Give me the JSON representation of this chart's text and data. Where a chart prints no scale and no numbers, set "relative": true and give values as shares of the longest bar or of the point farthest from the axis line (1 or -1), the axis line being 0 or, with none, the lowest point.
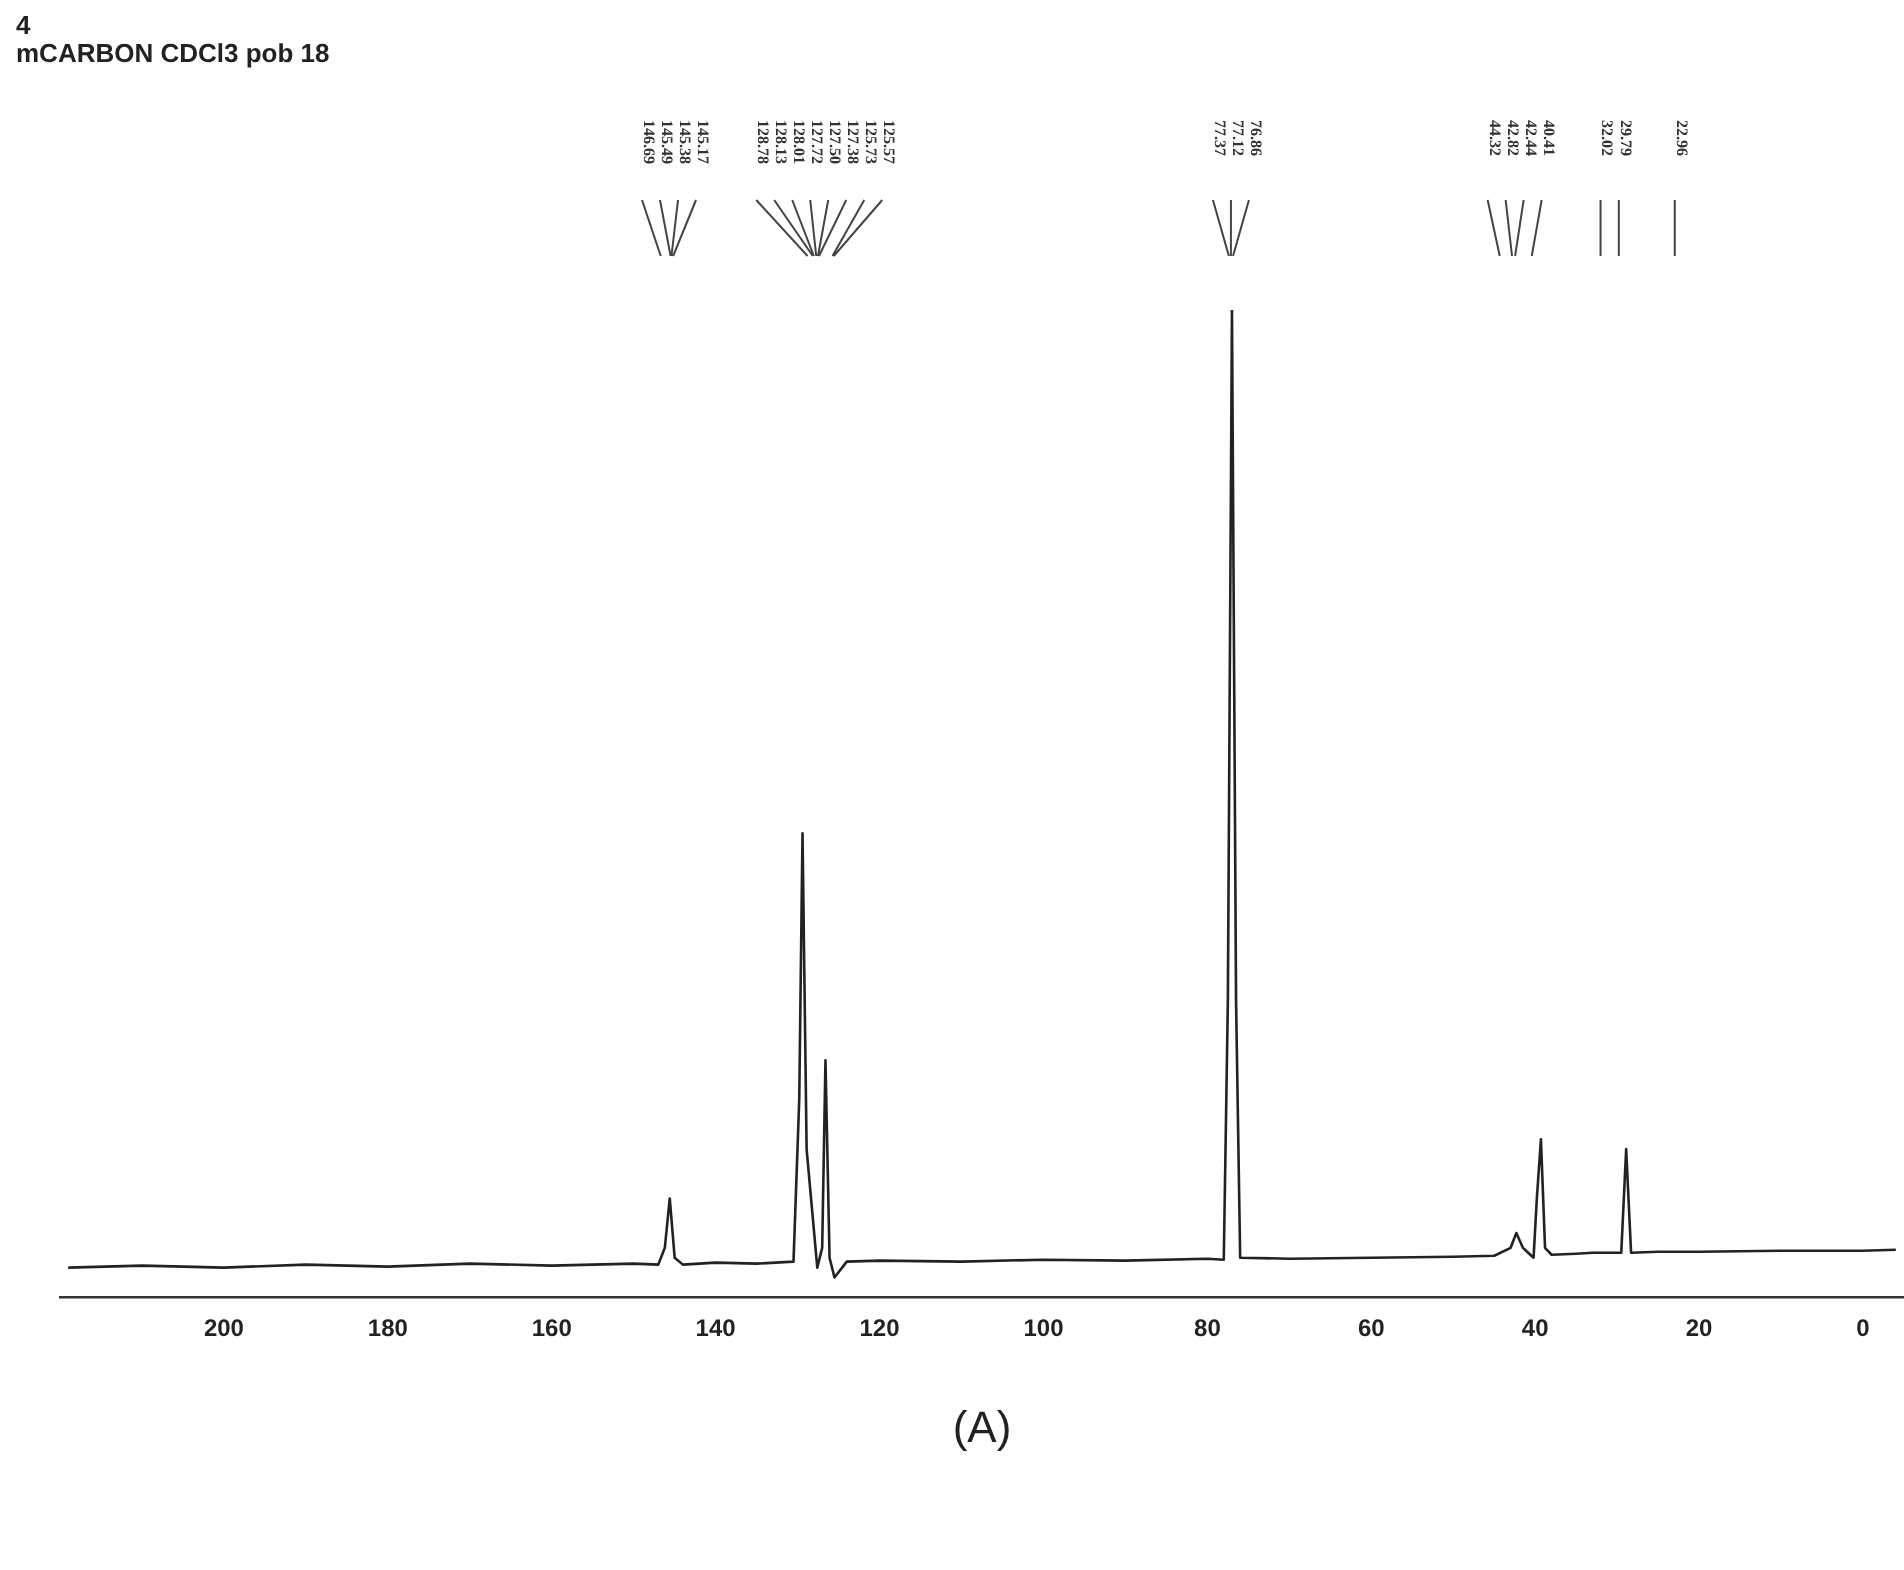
{
  "chart_data": {
    "type": "line",
    "title": "4",
    "subtitle": "mCARBON CDCl3 pob 18",
    "annotations": [
      "146.69",
      "145.49",
      "145.38",
      "145.17",
      "128.78",
      "128.13",
      "128.01",
      "127.72",
      "127.50",
      "127.38",
      "125.73",
      "125.57",
      "77.37",
      "77.12",
      "76.86",
      "44.32",
      "42.82",
      "42.44",
      "40.41",
      "32.02",
      "29.79",
      "22.96",
      "(A)"
    ],
    "x": [
      219,
      210,
      200,
      190,
      180,
      170,
      160,
      150,
      147,
      146.2,
      145.6,
      145,
      144,
      140,
      135,
      130.5,
      129.8,
      129.4,
      128.9,
      127.6,
      127,
      126.6,
      126.1,
      125.5,
      124,
      120,
      110,
      100,
      90,
      80,
      78,
      77.5,
      77,
      76.5,
      76,
      70,
      60,
      50,
      45,
      43,
      42.3,
      41.5,
      40.2,
      39.8,
      39.3,
      38.8,
      38,
      35,
      33,
      29.5,
      28.9,
      28.3,
      25,
      20,
      10,
      0,
      -4
    ],
    "values": [
      0.03,
      0.032,
      0.03,
      0.033,
      0.031,
      0.034,
      0.032,
      0.034,
      0.033,
      0.05,
      0.1,
      0.04,
      0.033,
      0.035,
      0.034,
      0.036,
      0.2,
      0.47,
      0.15,
      0.03,
      0.05,
      0.24,
      0.04,
      0.02,
      0.036,
      0.037,
      0.036,
      0.038,
      0.037,
      0.039,
      0.038,
      0.3,
      1,
      0.3,
      0.04,
      0.039,
      0.04,
      0.041,
      0.042,
      0.05,
      0.065,
      0.05,
      0.04,
      0.1,
      0.16,
      0.05,
      0.043,
      0.044,
      0.045,
      0.045,
      0.15,
      0.045,
      0.046,
      0.046,
      0.047,
      0.047,
      0.048
    ],
    "color": "#222222",
    "relative": true,
    "xlim": [
      220,
      -5
    ],
    "xticks": [
      200,
      180,
      160,
      140,
      120,
      100,
      80,
      60,
      40,
      20,
      0
    ],
    "tick_labels": "x",
    "grid": false,
    "legend": false,
    "marker": "none",
    "line_style": "solid"
  }
}
